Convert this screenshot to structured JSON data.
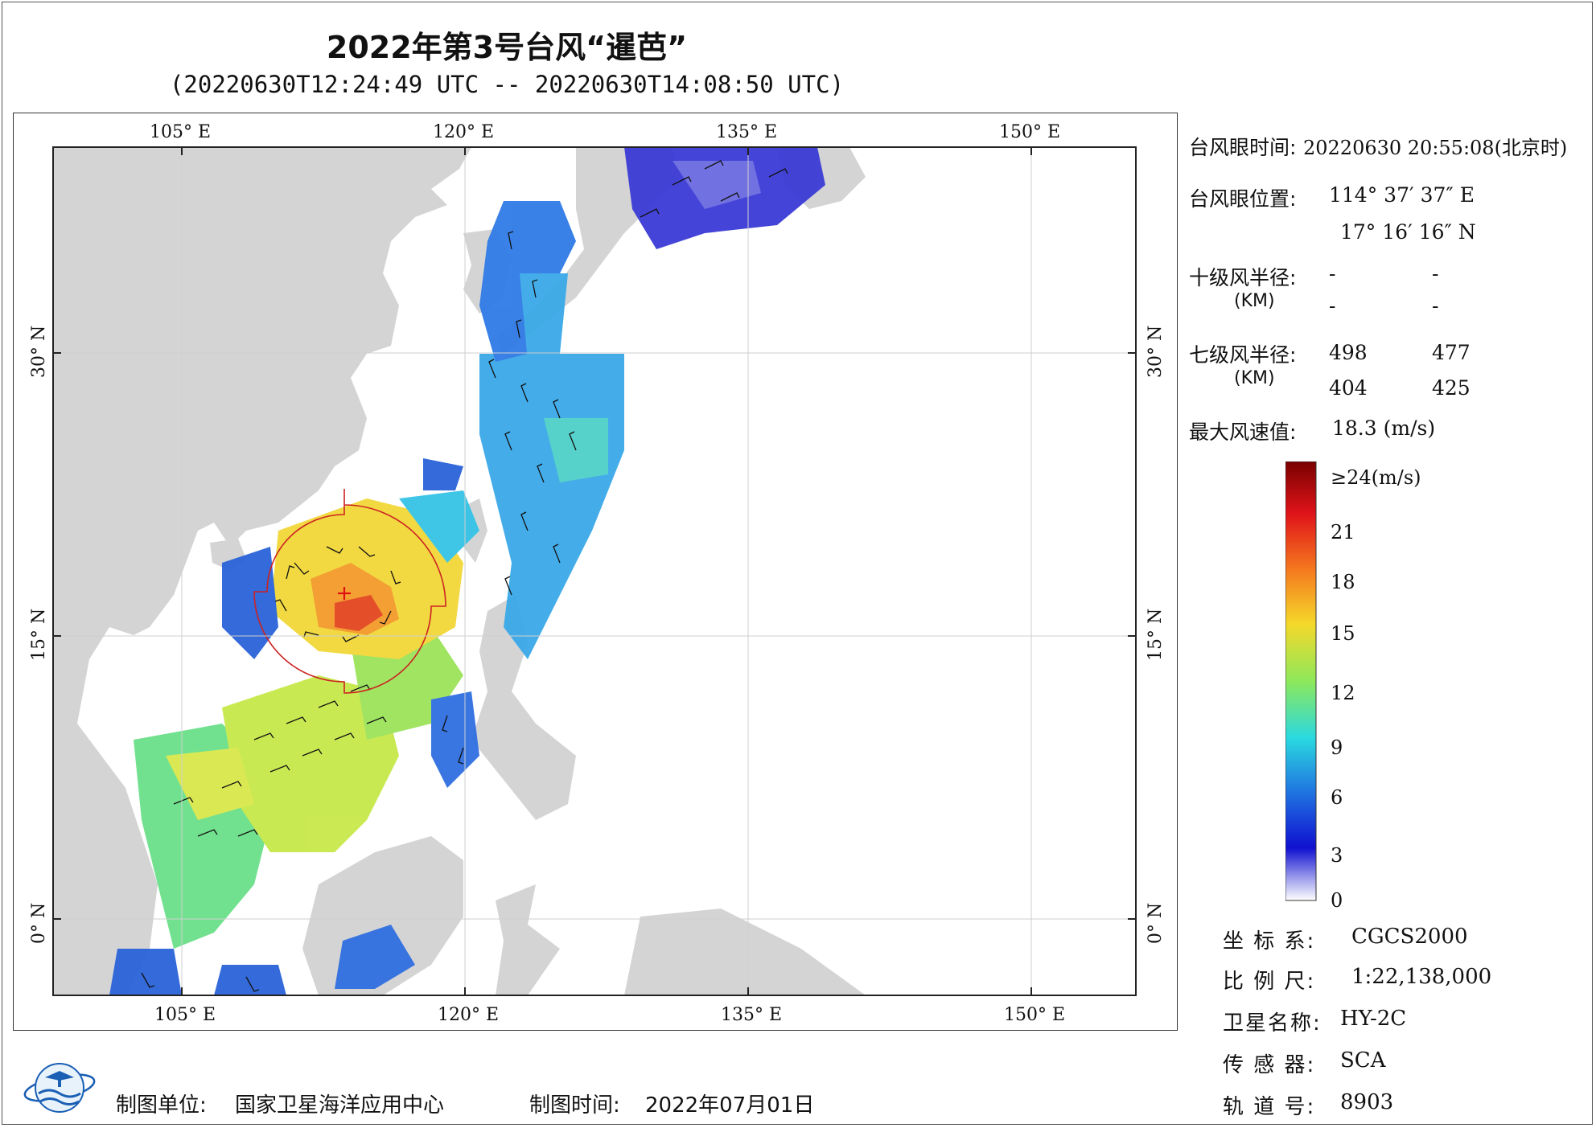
{
  "title": "2022年第3号台风“暹芭”",
  "subtitle": "(20220630T12:24:49 UTC -- 20220630T14:08:50 UTC)",
  "map": {
    "lon_top": [
      "105° E",
      "120° E",
      "135° E",
      "150° E"
    ],
    "lon_bottom": [
      "105° E",
      "120° E",
      "135° E",
      "150° E"
    ],
    "lat_left": [
      "30° N",
      "15° N",
      "0° N"
    ],
    "lat_right": [
      "30° N",
      "15° N",
      "0° N"
    ]
  },
  "info": {
    "eye_time_label": "台风眼时间:",
    "eye_time_value": "20220630 20:55:08(北京时)",
    "eye_pos_label": "台风眼位置:",
    "eye_lon": "114° 37′ 37″ E",
    "eye_lat": "17° 16′ 16″ N",
    "r10_label": "十级风半径:",
    "r10_unit": "(KM)",
    "r10_values": [
      "-",
      "-",
      "-",
      "-"
    ],
    "r7_label": "七级风半径:",
    "r7_unit": "(KM)",
    "r7_values": [
      "498",
      "477",
      "404",
      "425"
    ],
    "max_wind_label": "最大风速值:",
    "max_wind_value": "18.3  (m/s)"
  },
  "colorbar": {
    "labels": [
      "≥24(m/s)",
      "21",
      "18",
      "15",
      "12",
      "9",
      "6",
      "3",
      "0"
    ],
    "colors": [
      "#8b0000",
      "#e8201a",
      "#f57c1f",
      "#f5e12a",
      "#8ee85a",
      "#2ad9e0",
      "#1f6fe0",
      "#2020d0",
      "#ffffff"
    ]
  },
  "meta": {
    "crs_label": "坐 标 系:",
    "crs_value": "CGCS2000",
    "scale_label": "比 例 尺:",
    "scale_value": "1:22,138,000",
    "sat_label": "卫星名称:",
    "sat_value": "HY-2C",
    "sensor_label": "传 感 器:",
    "sensor_value": "SCA",
    "orbit_label": "轨 道 号:",
    "orbit_value": "8903"
  },
  "footer": {
    "unit_label": "制图单位:",
    "unit_value": "国家卫星海洋应用中心",
    "time_label": "制图时间:",
    "time_value": "2022年07月01日"
  }
}
